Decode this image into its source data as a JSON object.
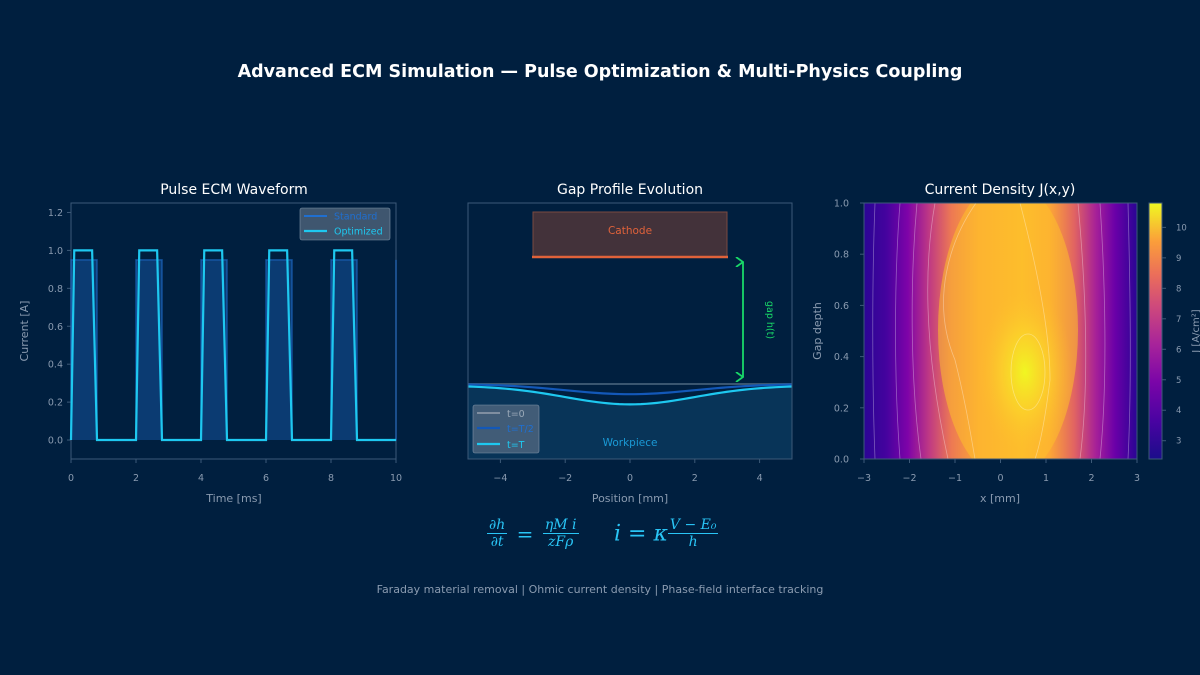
{
  "title": "Advanced ECM Simulation — Pulse Optimization & Multi-Physics Coupling",
  "colors": {
    "background": "#001f3f",
    "axis": "#3d5a78",
    "tick_text": "#8a9bb0",
    "standard": "#1f6fd1",
    "optimized": "#1ec8f0",
    "cathode": "#e0623a",
    "gap_arrow": "#18d868",
    "workpiece": "#0a3a60"
  },
  "chart_data": [
    {
      "type": "line",
      "title": "Pulse ECM Waveform",
      "xlabel": "Time [ms]",
      "ylabel": "Current [A]",
      "xlim": [
        0,
        10
      ],
      "ylim": [
        -0.1,
        1.25
      ],
      "xticks": [
        0,
        2,
        4,
        6,
        8,
        10
      ],
      "yticks": [
        0.0,
        0.2,
        0.4,
        0.6,
        0.8,
        1.0,
        1.2
      ],
      "ytick_labels": [
        "0.0",
        "0.2",
        "0.4",
        "0.6",
        "0.8",
        "1.0",
        "1.2"
      ],
      "legend": [
        "Standard",
        "Optimized"
      ],
      "legend_position": "upper right",
      "series": [
        {
          "name": "Standard",
          "style": "filled rectangular pulses",
          "x": [
            0,
            0,
            0.8,
            0.8,
            2,
            2,
            2.8,
            2.8,
            4,
            4,
            4.8,
            4.8,
            6,
            6,
            6.8,
            6.8,
            8,
            8,
            8.8,
            8.8,
            10,
            10
          ],
          "y": [
            0,
            0.95,
            0.95,
            0,
            0,
            0.95,
            0.95,
            0,
            0,
            0.95,
            0.95,
            0,
            0,
            0.95,
            0.95,
            0,
            0,
            0.95,
            0.95,
            0,
            0,
            0.95
          ]
        },
        {
          "name": "Optimized",
          "style": "trapezoidal pulses",
          "x": [
            0,
            0.1,
            0.65,
            0.8,
            2.0,
            2.1,
            2.65,
            2.8,
            4.0,
            4.1,
            4.65,
            4.8,
            6.0,
            6.1,
            6.65,
            6.8,
            8.0,
            8.1,
            8.65,
            8.8,
            10.0
          ],
          "y": [
            0,
            1.0,
            1.0,
            0,
            0,
            1.0,
            1.0,
            0,
            0,
            1.0,
            1.0,
            0,
            0,
            1.0,
            1.0,
            0,
            0,
            1.0,
            1.0,
            0,
            0
          ]
        }
      ]
    },
    {
      "type": "line",
      "title": "Gap Profile Evolution",
      "xlabel": "Position [mm]",
      "ylabel": "",
      "xlim": [
        -5,
        5
      ],
      "xticks": [
        -4,
        -2,
        0,
        2,
        4
      ],
      "xtick_labels": [
        "−4",
        "−2",
        "0",
        "2",
        "4"
      ],
      "legend": [
        "t=0",
        "t=T/2",
        "t=T"
      ],
      "legend_position": "lower left",
      "annotations": [
        "Cathode",
        "Workpiece",
        "gap h(t)"
      ],
      "cathode": {
        "x": [
          -3,
          3
        ]
      },
      "series": [
        {
          "name": "t=0",
          "x": [
            -5,
            -2.5,
            0,
            2.5,
            5
          ],
          "depth": [
            0,
            0,
            0,
            0,
            0
          ]
        },
        {
          "name": "t=T/2",
          "x": [
            -5,
            -2.5,
            0,
            2.5,
            5
          ],
          "depth": [
            0,
            0.035,
            0.06,
            0.035,
            0
          ]
        },
        {
          "name": "t=T",
          "x": [
            -5,
            -2.5,
            0,
            2.5,
            5
          ],
          "depth": [
            0.01,
            0.07,
            0.12,
            0.07,
            0.01
          ]
        }
      ]
    },
    {
      "type": "heatmap",
      "title": "Current Density J(x,y)",
      "xlabel": "x [mm]",
      "ylabel": "Gap depth",
      "colorbar_label": "J [A/cm²]",
      "xlim": [
        -3,
        3
      ],
      "ylim": [
        0,
        1
      ],
      "xticks": [
        -3,
        -2,
        -1,
        0,
        1,
        2,
        3
      ],
      "xtick_labels": [
        "−3",
        "−2",
        "−1",
        "0",
        "1",
        "2",
        "3"
      ],
      "yticks": [
        0.0,
        0.2,
        0.4,
        0.6,
        0.8,
        1.0
      ],
      "ytick_labels": [
        "0.0",
        "0.2",
        "0.4",
        "0.6",
        "0.8",
        "1.0"
      ],
      "colorbar_ticks": [
        3,
        4,
        5,
        6,
        7,
        8,
        9,
        10
      ],
      "colorbar_range": [
        2.4,
        10.8
      ],
      "colormap": "plasma",
      "peak": {
        "x": 0.6,
        "y": 0.35,
        "value": 10.8
      },
      "min_value": 2.4
    }
  ],
  "equations": {
    "faraday_lhs_num": "∂h",
    "faraday_lhs_den": "∂t",
    "faraday_eq": "=",
    "faraday_rhs_num": "ηM i",
    "faraday_rhs_den": "zFρ",
    "ohm_lhs": "i = κ",
    "ohm_num": "V − E₀",
    "ohm_den": "h"
  },
  "footer": "Faraday material removal  |  Ohmic current density  |  Phase-field interface tracking"
}
